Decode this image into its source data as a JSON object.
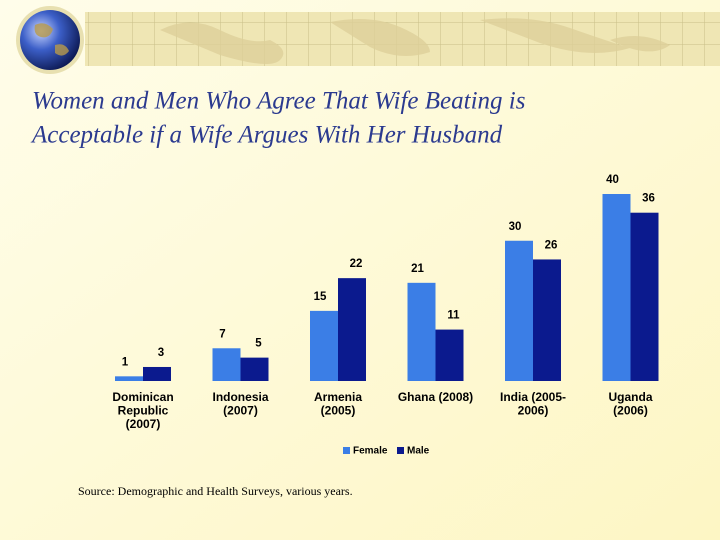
{
  "chart_data": {
    "type": "bar",
    "title": [
      "Women and Men Who Agree That Wife Beating is",
      "Acceptable if a Wife Argues With Her Husband"
    ],
    "categories": [
      "Dominican\nRepublic\n(2007)",
      "Indonesia\n(2007)",
      "Armenia\n(2005)",
      "Ghana (2008)",
      "India (2005-\n2006)",
      "Uganda\n(2006)"
    ],
    "series": [
      {
        "name": "Female",
        "color": "#3b7ee6",
        "values": [
          1,
          7,
          15,
          21,
          30,
          40
        ]
      },
      {
        "name": "Male",
        "color": "#0b1a8e",
        "values": [
          3,
          5,
          22,
          11,
          26,
          36
        ]
      }
    ],
    "legend": "bottom",
    "source": "Source: Demographic and Health Surveys, various years."
  }
}
